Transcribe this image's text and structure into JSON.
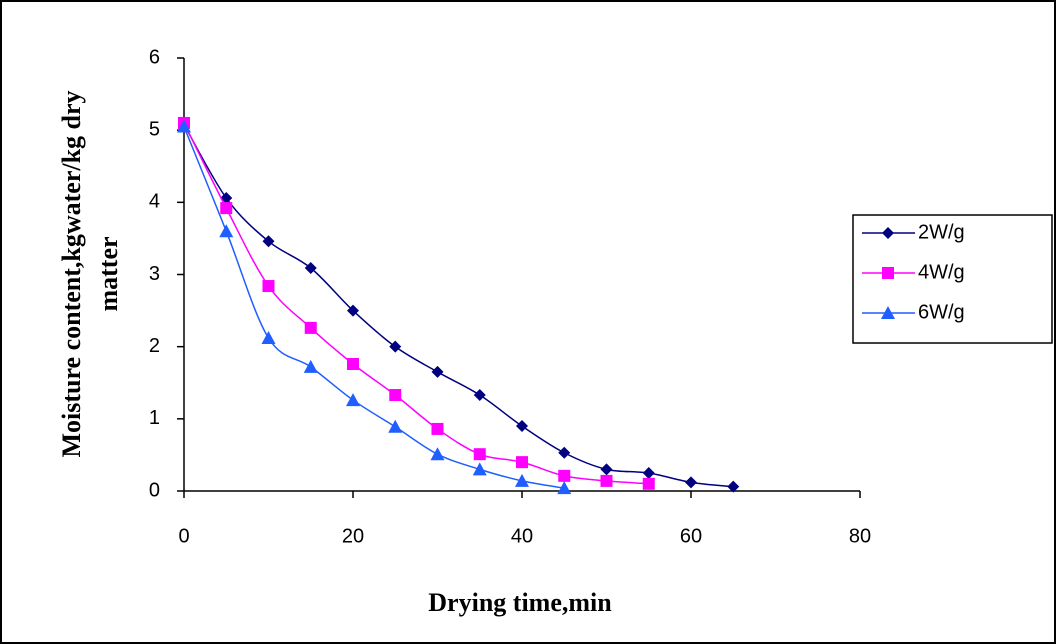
{
  "chart_data": {
    "type": "line",
    "x_label": "Drying time,min",
    "y_label": [
      "Moisture content,kgwater/kg dry",
      "matter"
    ],
    "xlim": [
      0,
      80
    ],
    "xticks": [
      0,
      20,
      40,
      60,
      80
    ],
    "ylim": [
      0,
      6
    ],
    "yticks": [
      0,
      1,
      2,
      3,
      4,
      5,
      6
    ],
    "grid": false,
    "legend": "right",
    "series": [
      {
        "name": "2W/g",
        "color": "#000080",
        "marker": "diamond",
        "x": [
          0,
          5,
          10,
          15,
          20,
          25,
          30,
          35,
          40,
          45,
          50,
          55,
          60,
          65
        ],
        "values": [
          5.08,
          4.06,
          3.46,
          3.09,
          2.5,
          2.0,
          1.65,
          1.33,
          0.9,
          0.53,
          0.3,
          0.25,
          0.12,
          0.06
        ]
      },
      {
        "name": "4W/g",
        "color": "#FF00FF",
        "marker": "square",
        "x": [
          0,
          5,
          10,
          15,
          20,
          25,
          30,
          35,
          40,
          45,
          50,
          55
        ],
        "values": [
          5.1,
          3.92,
          2.84,
          2.26,
          1.76,
          1.33,
          0.86,
          0.51,
          0.4,
          0.21,
          0.14,
          0.1
        ]
      },
      {
        "name": "6W/g",
        "color": "#1F5FFF",
        "marker": "triangle",
        "x": [
          0,
          5,
          10,
          15,
          20,
          25,
          30,
          35,
          40,
          45
        ],
        "values": [
          5.05,
          3.6,
          2.12,
          1.72,
          1.26,
          0.89,
          0.51,
          0.3,
          0.14,
          0.04
        ]
      }
    ]
  }
}
